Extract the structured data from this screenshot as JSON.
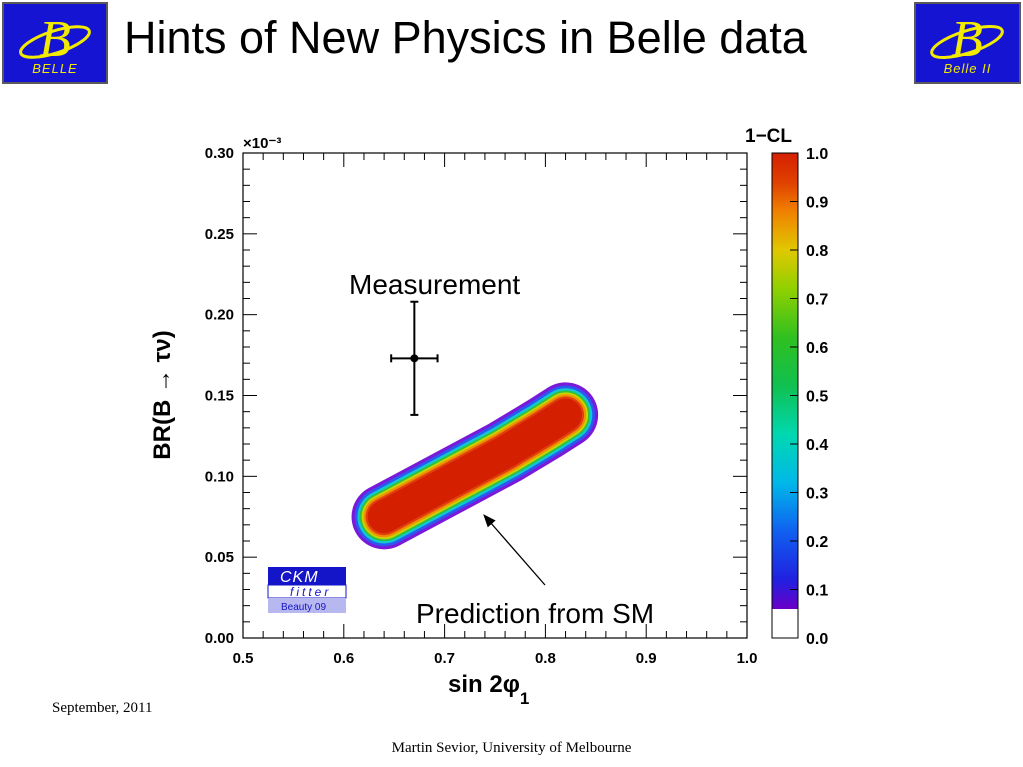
{
  "slide": {
    "title": "Hints of New Physics in Belle data",
    "footer_date": "September, 2011",
    "footer_author": "Martin Sevior, University of Melbourne"
  },
  "logos": {
    "left_text": "BELLE",
    "right_text": "Belle II",
    "background": "#1414d2",
    "letter_color": "#f2ea00"
  },
  "ckm_badge": {
    "line1": "CKM",
    "line2": "fitter",
    "line3": "Beauty 09"
  },
  "annotations": {
    "measurement": "Measurement",
    "prediction": "Prediction from SM"
  },
  "chart_data": {
    "type": "heatmap",
    "xlabel": "sin 2φ",
    "xlabel_subscript": "1",
    "ylabel": "BR(B → τν)",
    "y_exponent": "×10⁻³",
    "xlim": [
      0.5,
      1.0
    ],
    "ylim": [
      0.0,
      0.3
    ],
    "x_ticks": [
      "0.5",
      "0.6",
      "0.7",
      "0.8",
      "0.9",
      "1.0"
    ],
    "y_ticks": [
      "0.00",
      "0.05",
      "0.10",
      "0.15",
      "0.20",
      "0.25",
      "0.30"
    ],
    "colorbar": {
      "label": "1−CL",
      "range": [
        0.0,
        1.0
      ],
      "ticks": [
        "0.0",
        "0.1",
        "0.2",
        "0.3",
        "0.4",
        "0.5",
        "0.6",
        "0.7",
        "0.8",
        "0.9",
        "1.0"
      ]
    },
    "measurement": {
      "x": 0.67,
      "y": 0.173,
      "x_err": 0.023,
      "y_err": 0.035
    },
    "prediction_region": {
      "ridge": [
        [
          0.64,
          0.075
        ],
        [
          0.7,
          0.095
        ],
        [
          0.76,
          0.115
        ],
        [
          0.8,
          0.13
        ],
        [
          0.82,
          0.138
        ]
      ],
      "half_width": 0.013,
      "x_range": [
        0.62,
        0.84
      ]
    }
  }
}
